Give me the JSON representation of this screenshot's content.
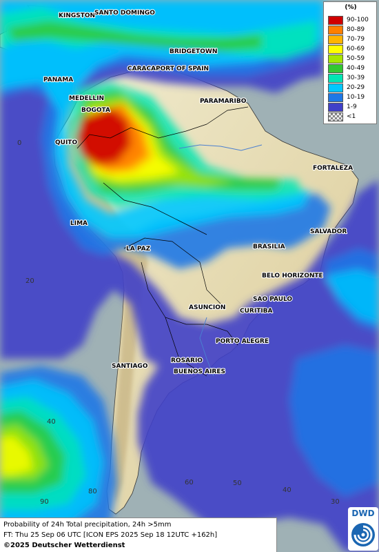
{
  "legend": {
    "unit": "(%)",
    "items": [
      {
        "label": "90-100",
        "color": "#d00000"
      },
      {
        "label": "80-89",
        "color": "#ff7f00"
      },
      {
        "label": "70-79",
        "color": "#ffb400"
      },
      {
        "label": "60-69",
        "color": "#ffff00"
      },
      {
        "label": "50-59",
        "color": "#a8e600"
      },
      {
        "label": "40-49",
        "color": "#32c832"
      },
      {
        "label": "30-39",
        "color": "#00e6b4"
      },
      {
        "label": "20-29",
        "color": "#00c8ff"
      },
      {
        "label": "10-19",
        "color": "#1e78e6"
      },
      {
        "label": "1-9",
        "color": "#4040c8"
      },
      {
        "label": "<1",
        "color": "checker"
      }
    ]
  },
  "cities": [
    "KINGSTON",
    "SANTO DOMINGO",
    "BRIDGETOWN",
    "CARACAS",
    "PORT OF SPAIN",
    "PANAMA",
    "MEDELLIN",
    "BOGOTA",
    "PARAMARIBO",
    "QUITO",
    "FORTALEZA",
    "LIMA",
    "SALVADOR",
    "LA PAZ",
    "BRASILIA",
    "BELO HORIZONTE",
    "SAO PAULO",
    "ASUNCION",
    "CURITIBA",
    "PORTO ALEGRE",
    "ROSARIO",
    "SANTIAGO",
    "BUENOS AIRES"
  ],
  "grid_labels": [
    "0",
    "20",
    "40",
    "80",
    "90",
    "60",
    "50",
    "40",
    "30"
  ],
  "footer": {
    "line1": "Probability of 24h Total precipitation, 24h >5mm",
    "line2": "FT: Thu 25 Sep 06 UTC [ICON EPS 2025 Sep 18 12UTC +162h]",
    "line3": "©2025 Deutscher Wetterdienst"
  },
  "logo": {
    "text": "DWD"
  },
  "colors": {
    "sea": "#9fb1b5",
    "land": "#e6dcb4",
    "mountain": "#c9b98e",
    "border": "#000000"
  }
}
